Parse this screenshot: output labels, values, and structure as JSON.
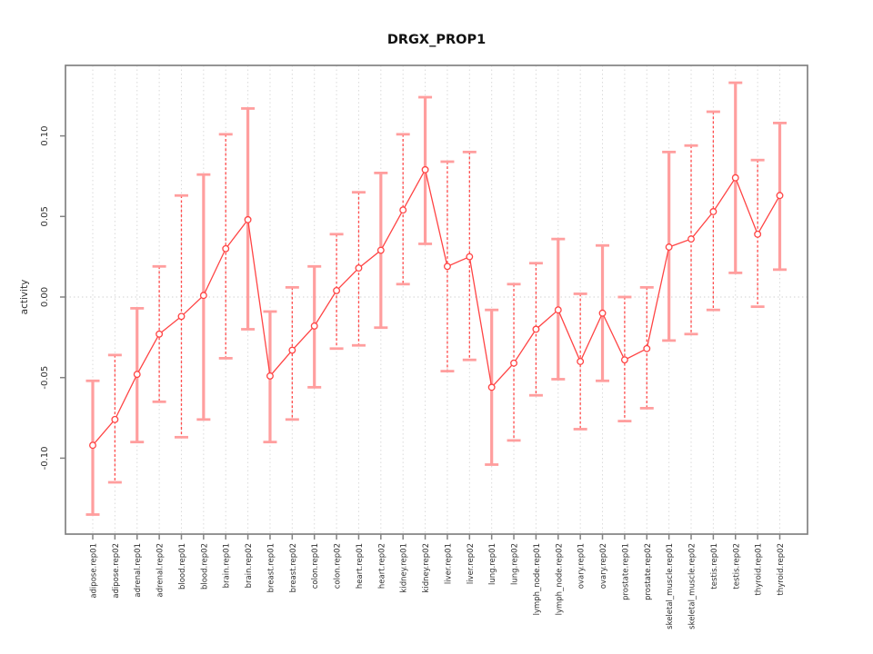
{
  "chart_data": {
    "type": "line",
    "title": "DRGX_PROP1",
    "xlabel": "",
    "ylabel": "activity",
    "legend_position": "none",
    "grid": "vertical dotted gridline at every category; horizontal dotted line at y=0 only",
    "ylim": [
      -0.145,
      0.145
    ],
    "ytick_labels": [
      "-0.10",
      "-0.05",
      "0.00",
      "0.05",
      "0.10"
    ],
    "ytick_values": [
      -0.1,
      -0.05,
      0.0,
      0.05,
      0.1
    ],
    "categories": [
      "adipose.rep01",
      "adipose.rep02",
      "adrenal.rep01",
      "adrenal.rep02",
      "blood.rep01",
      "blood.rep02",
      "brain.rep01",
      "brain.rep02",
      "breast.rep01",
      "breast.rep02",
      "colon.rep01",
      "colon.rep02",
      "heart.rep01",
      "heart.rep02",
      "kidney.rep01",
      "kidney.rep02",
      "liver.rep01",
      "liver.rep02",
      "lung.rep01",
      "lung.rep02",
      "lymph_node.rep01",
      "lymph_node.rep02",
      "ovary.rep01",
      "ovary.rep02",
      "prostate.rep01",
      "prostate.rep02",
      "skeletal_muscle.rep01",
      "skeletal_muscle.rep02",
      "testis.rep01",
      "testis.rep02",
      "thyroid.rep01",
      "thyroid.rep02"
    ],
    "series": [
      {
        "name": "activity",
        "marker": "open-circle",
        "values": [
          -0.092,
          -0.076,
          -0.048,
          -0.023,
          -0.012,
          0.001,
          0.03,
          0.048,
          -0.049,
          -0.033,
          -0.018,
          0.004,
          0.018,
          0.029,
          0.054,
          0.079,
          0.019,
          0.025,
          -0.056,
          -0.041,
          -0.02,
          -0.008,
          -0.04,
          -0.01,
          -0.039,
          -0.032,
          0.031,
          0.036,
          0.053,
          0.074,
          0.039,
          0.063
        ],
        "error_high": [
          -0.052,
          -0.036,
          -0.007,
          0.019,
          0.063,
          0.076,
          0.101,
          0.117,
          -0.009,
          0.006,
          0.019,
          0.039,
          0.065,
          0.077,
          0.101,
          0.124,
          0.084,
          0.09,
          -0.008,
          0.008,
          0.021,
          0.036,
          0.002,
          0.032,
          0.0,
          0.006,
          0.09,
          0.094,
          0.115,
          0.133,
          0.085,
          0.108
        ],
        "error_low": [
          -0.135,
          -0.115,
          -0.09,
          -0.065,
          -0.087,
          -0.076,
          -0.038,
          -0.02,
          -0.09,
          -0.076,
          -0.056,
          -0.032,
          -0.03,
          -0.019,
          0.008,
          0.033,
          -0.046,
          -0.039,
          -0.104,
          -0.089,
          -0.061,
          -0.051,
          -0.082,
          -0.052,
          -0.077,
          -0.069,
          -0.027,
          -0.023,
          -0.008,
          0.015,
          -0.006,
          0.017
        ],
        "error_bar_styles": [
          "solid",
          "dashed",
          "solid",
          "dashed",
          "dashed",
          "solid",
          "dashed",
          "solid",
          "solid",
          "dashed",
          "solid",
          "dashed",
          "dashed",
          "solid",
          "dashed",
          "solid",
          "dashed",
          "dashed",
          "solid",
          "dashed",
          "dashed",
          "solid",
          "dashed",
          "solid",
          "dashed",
          "dashed",
          "solid",
          "dashed",
          "dashed",
          "solid",
          "dashed",
          "solid"
        ]
      }
    ]
  },
  "colors": {
    "series_red": "#ff4444",
    "error_bar_salmon": "#ff9e9e",
    "error_bar_dashed_red": "#ff4a4a",
    "marker_fill": "#ffffff",
    "gridline": "#dadada",
    "zero_line": "#d2d2d2",
    "axis_box": "#828282",
    "tick_text": "#303030",
    "title_text": "#111111",
    "background": "#ffffff"
  }
}
